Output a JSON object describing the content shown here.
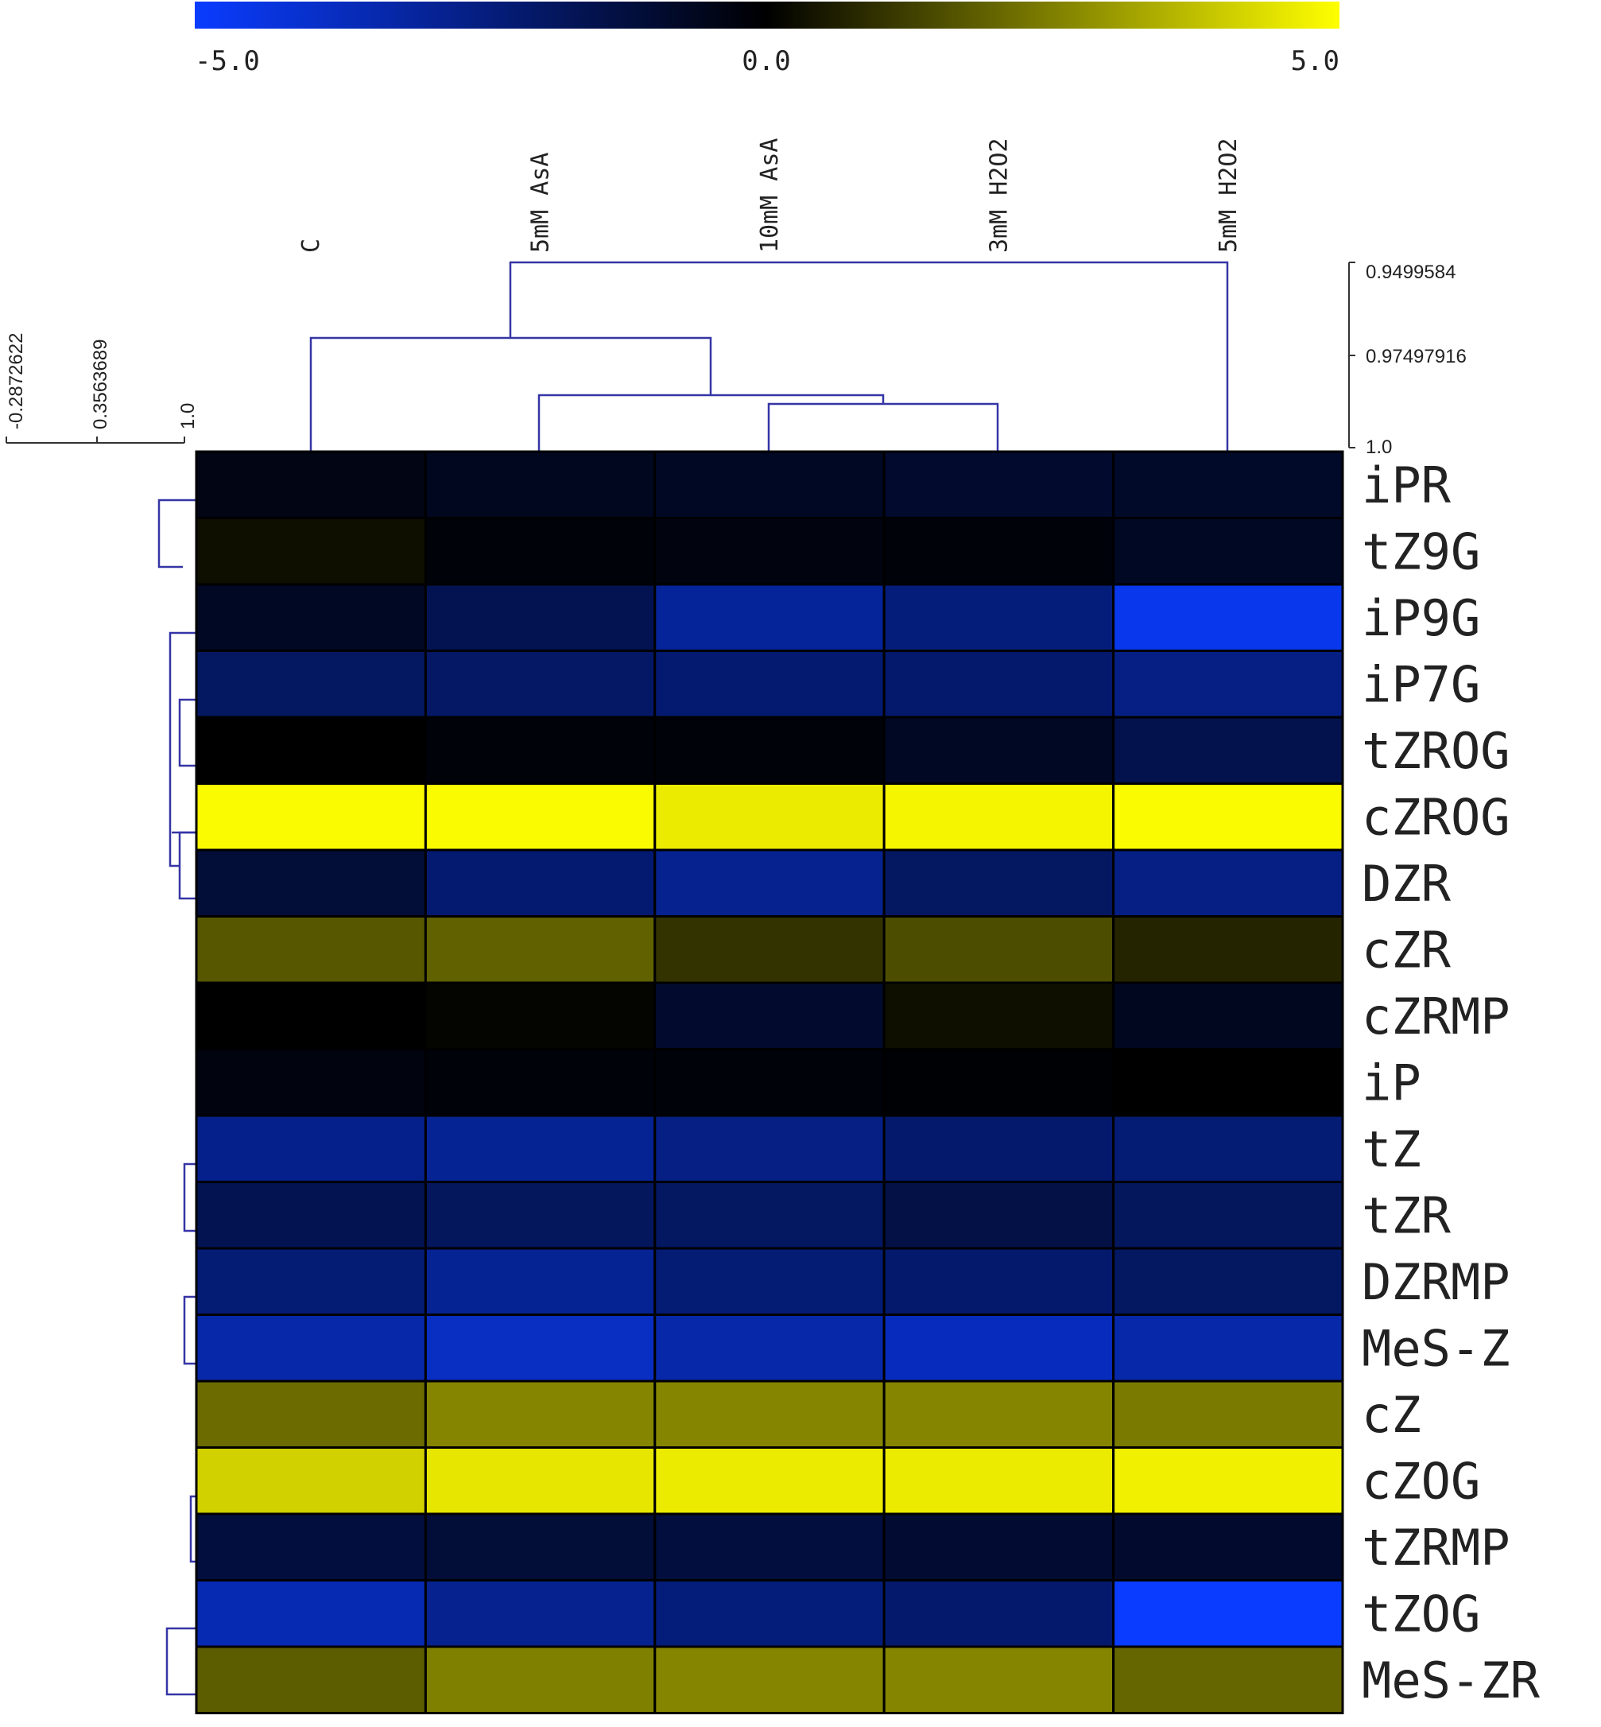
{
  "chart_data": {
    "type": "heatmap",
    "title": "",
    "colorscale": {
      "min": -5.0,
      "mid": 0.0,
      "max": 5.0,
      "min_color": "#0a3cff",
      "mid_color": "#000000",
      "max_color": "#ffff00",
      "tick_labels": [
        "-5.0",
        "0.0",
        "5.0"
      ]
    },
    "columns": [
      "C",
      "5mM AsA",
      "10mM AsA",
      "3mM H2O2",
      "5mM H2O2"
    ],
    "rows": [
      "iPR",
      "tZ9G",
      "iP9G",
      "iP7G",
      "tZROG",
      "cZROG",
      "DZR",
      "cZR",
      "cZRMP",
      "iP",
      "tZ",
      "tZR",
      "DZRMP",
      "MeS-Z",
      "cZ",
      "cZOG",
      "tZRMP",
      "tZOG",
      "MeS-ZR"
    ],
    "values": [
      [
        -0.4,
        -0.6,
        -0.7,
        -0.9,
        -0.8
      ],
      [
        0.3,
        -0.2,
        -0.3,
        -0.2,
        -0.7
      ],
      [
        -0.7,
        -1.6,
        -3.0,
        -2.4,
        -4.6
      ],
      [
        -1.9,
        -2.0,
        -2.2,
        -2.1,
        -2.6
      ],
      [
        0.0,
        -0.2,
        -0.2,
        -0.7,
        -1.5
      ],
      [
        4.9,
        4.9,
        4.6,
        4.8,
        4.9
      ],
      [
        -1.1,
        -2.2,
        -2.8,
        -1.9,
        -2.6
      ],
      [
        1.7,
        1.9,
        1.0,
        1.5,
        0.7
      ],
      [
        0.0,
        0.1,
        -0.9,
        0.3,
        -0.6
      ],
      [
        -0.3,
        -0.2,
        -0.2,
        -0.1,
        0.0
      ],
      [
        -2.7,
        -2.9,
        -2.6,
        -2.1,
        -2.3
      ],
      [
        -1.6,
        -1.8,
        -1.9,
        -1.4,
        -1.8
      ],
      [
        -2.3,
        -2.9,
        -2.3,
        -2.1,
        -1.9
      ],
      [
        -3.3,
        -3.8,
        -3.3,
        -3.7,
        -3.3
      ],
      [
        2.1,
        2.6,
        2.6,
        2.6,
        2.4
      ],
      [
        4.1,
        4.5,
        4.6,
        4.6,
        4.7
      ],
      [
        -1.2,
        -1.1,
        -1.2,
        -1.0,
        -0.9
      ],
      [
        -3.5,
        -2.8,
        -2.4,
        -2.1,
        -5.0
      ],
      [
        1.8,
        2.5,
        2.6,
        2.6,
        2.0
      ]
    ],
    "column_dendrogram": {
      "scale_labels": [
        "0.9499584",
        "0.97497916",
        "1.0"
      ],
      "scale_values": [
        0.9499584,
        0.97497916,
        1.0
      ],
      "merges": [
        {
          "left": "10mM AsA",
          "right": "3mM H2O2",
          "height": 0.9935
        },
        {
          "left": "5mM AsA",
          "right": "[10mM AsA, 3mM H2O2]",
          "height": 0.9912
        },
        {
          "left": "C",
          "right": "[5mM AsA, 10mM AsA, 3mM H2O2]",
          "height": 0.9813
        },
        {
          "left": "[C, 5mM AsA, 10mM AsA, 3mM H2O2]",
          "right": "5mM H2O2",
          "height": 0.95
        }
      ]
    },
    "row_dendrogram": {
      "scale_labels": [
        "-0.2872622",
        "0.3563689",
        "1.0"
      ],
      "scale_values": [
        -0.2872622,
        0.3563689,
        1.0
      ]
    },
    "grid": false,
    "legend": "top"
  }
}
